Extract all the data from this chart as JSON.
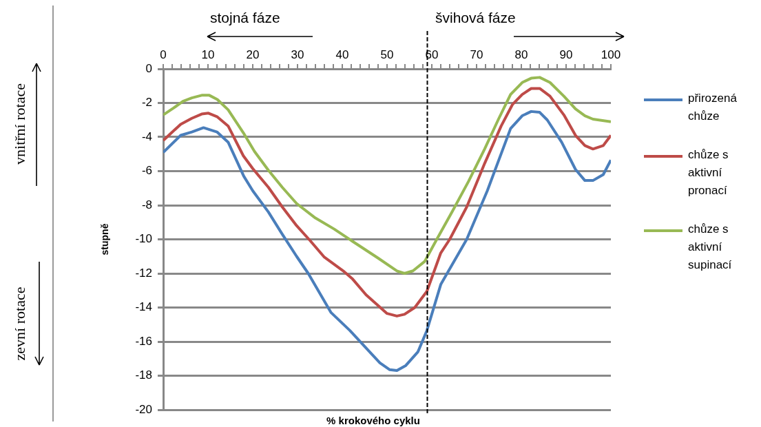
{
  "chart_data": {
    "type": "line",
    "xlabel": "% krokového cyklu",
    "ylabel": "stupně",
    "annotations": [
      "stojná fáze",
      "švihová fáze",
      "vnitřní rotace",
      "zevní rotace"
    ],
    "series": [
      {
        "name": "přirozená chůze",
        "color": "#4a7ebb",
        "x": [
          0,
          3.9,
          6.4,
          9,
          12,
          14.5,
          18,
          20,
          23.5,
          26.6,
          29.8,
          32.4,
          37.5,
          41.7,
          48.4,
          50.6,
          52.2,
          54.2,
          56.9,
          58.9,
          62,
          67.8,
          72.4,
          77.6,
          80.2,
          82.2,
          84.1,
          85.8,
          89,
          92.1,
          94.2,
          96,
          98.3,
          100
        ],
        "values": [
          -4.9,
          -3.9,
          -3.7,
          -3.45,
          -3.7,
          -4.3,
          -6.3,
          -7.15,
          -8.4,
          -9.7,
          -11,
          -12,
          -14.3,
          -15.35,
          -17.25,
          -17.65,
          -17.7,
          -17.4,
          -16.6,
          -15.35,
          -12.65,
          -10,
          -7.15,
          -3.5,
          -2.75,
          -2.5,
          -2.55,
          -3,
          -4.3,
          -5.9,
          -6.55,
          -6.55,
          -6.2,
          -5.35
        ]
      },
      {
        "name": "chůze s aktivní pronací",
        "color": "#be4b48",
        "x": [
          0,
          3.9,
          6.4,
          8.6,
          10.1,
          12,
          14.5,
          17.9,
          20,
          23.5,
          26.6,
          29.8,
          32.9,
          36,
          40.2,
          42.2,
          45.3,
          50,
          52.2,
          53.9,
          56.2,
          58.9,
          62,
          64,
          67.8,
          71.8,
          75.5,
          78,
          80.2,
          82.2,
          84.1,
          86.4,
          89.5,
          92.1,
          94.2,
          96,
          98.3,
          100
        ],
        "values": [
          -4.2,
          -3.25,
          -2.9,
          -2.65,
          -2.6,
          -2.8,
          -3.35,
          -5.1,
          -5.85,
          -6.95,
          -8.1,
          -9.2,
          -10.1,
          -11.05,
          -11.85,
          -12.3,
          -13.25,
          -14.35,
          -14.5,
          -14.4,
          -14,
          -13.05,
          -10.8,
          -10,
          -8.1,
          -5.55,
          -3.35,
          -2.1,
          -1.5,
          -1.15,
          -1.15,
          -1.6,
          -2.7,
          -3.9,
          -4.5,
          -4.7,
          -4.5,
          -3.9
        ]
      },
      {
        "name": "chůze s aktivní supinací",
        "color": "#98b954",
        "x": [
          0,
          2.3,
          4.4,
          6.4,
          8.6,
          10.3,
          12.1,
          14.5,
          17.9,
          20.4,
          23.5,
          26.6,
          29.8,
          34,
          38.2,
          42.2,
          48,
          52.2,
          53.9,
          55.8,
          58.4,
          60.9,
          64.6,
          68.2,
          71.8,
          74.9,
          77.6,
          80.2,
          82.2,
          84.1,
          86.4,
          89.5,
          92.1,
          94.2,
          96,
          100
        ],
        "values": [
          -2.7,
          -2.3,
          -1.9,
          -1.7,
          -1.55,
          -1.55,
          -1.8,
          -2.4,
          -3.75,
          -4.85,
          -5.95,
          -6.95,
          -7.9,
          -8.75,
          -9.4,
          -10.1,
          -11.1,
          -11.85,
          -12,
          -11.85,
          -11.3,
          -10.1,
          -8.35,
          -6.6,
          -4.7,
          -2.95,
          -1.5,
          -0.8,
          -0.55,
          -0.5,
          -0.8,
          -1.6,
          -2.35,
          -2.75,
          -2.95,
          -3.1
        ]
      }
    ],
    "xlim": [
      0,
      100
    ],
    "xticks": [
      0,
      {
        "value": 2,
        "label": null
      },
      {
        "value": 4,
        "label": null
      },
      {
        "value": 6,
        "label": null
      },
      {
        "value": 8,
        "label": null
      },
      10,
      {
        "value": 12,
        "label": null
      },
      {
        "value": 14,
        "label": null
      },
      {
        "value": 16,
        "label": null
      },
      {
        "value": 18,
        "label": null
      },
      20,
      {
        "value": 22,
        "label": null
      },
      {
        "value": 24,
        "label": null
      },
      {
        "value": 26,
        "label": null
      },
      {
        "value": 28,
        "label": null
      },
      30,
      {
        "value": 32,
        "label": null
      },
      {
        "value": 34,
        "label": null
      },
      {
        "value": 36,
        "label": null
      },
      {
        "value": 38,
        "label": null
      },
      40,
      {
        "value": 42,
        "label": null
      },
      {
        "value": 44,
        "label": null
      },
      {
        "value": 46,
        "label": null
      },
      {
        "value": 48,
        "label": null
      },
      50,
      {
        "value": 52,
        "label": null
      },
      {
        "value": 54,
        "label": null
      },
      {
        "value": 56,
        "label": null
      },
      {
        "value": 58,
        "label": null
      },
      60,
      {
        "value": 62,
        "label": null
      },
      {
        "value": 64,
        "label": null
      },
      {
        "value": 66,
        "label": null
      },
      {
        "value": 68,
        "label": null
      },
      70,
      {
        "value": 72,
        "label": null
      },
      {
        "value": 74,
        "label": null
      },
      {
        "value": 76,
        "label": null
      },
      {
        "value": 78,
        "label": null
      },
      80,
      {
        "value": 82,
        "label": null
      },
      {
        "value": 84,
        "label": null
      },
      {
        "value": 86,
        "label": null
      },
      {
        "value": 88,
        "label": null
      },
      90,
      {
        "value": 92,
        "label": null
      },
      {
        "value": 94,
        "label": null
      },
      {
        "value": 96,
        "label": null
      },
      {
        "value": 98,
        "label": null
      },
      100
    ],
    "ylim": [
      -20,
      0
    ],
    "yticks": [
      -20,
      -18,
      -16,
      -14,
      -12,
      -10,
      -8,
      -6,
      -4,
      -2,
      0
    ],
    "ref_lines": [
      {
        "axis": "x",
        "value": 59,
        "color": "#000000",
        "line_style": "dashed"
      }
    ],
    "grid": "y",
    "legend": "right",
    "marker": "none",
    "line_style": "solid"
  }
}
